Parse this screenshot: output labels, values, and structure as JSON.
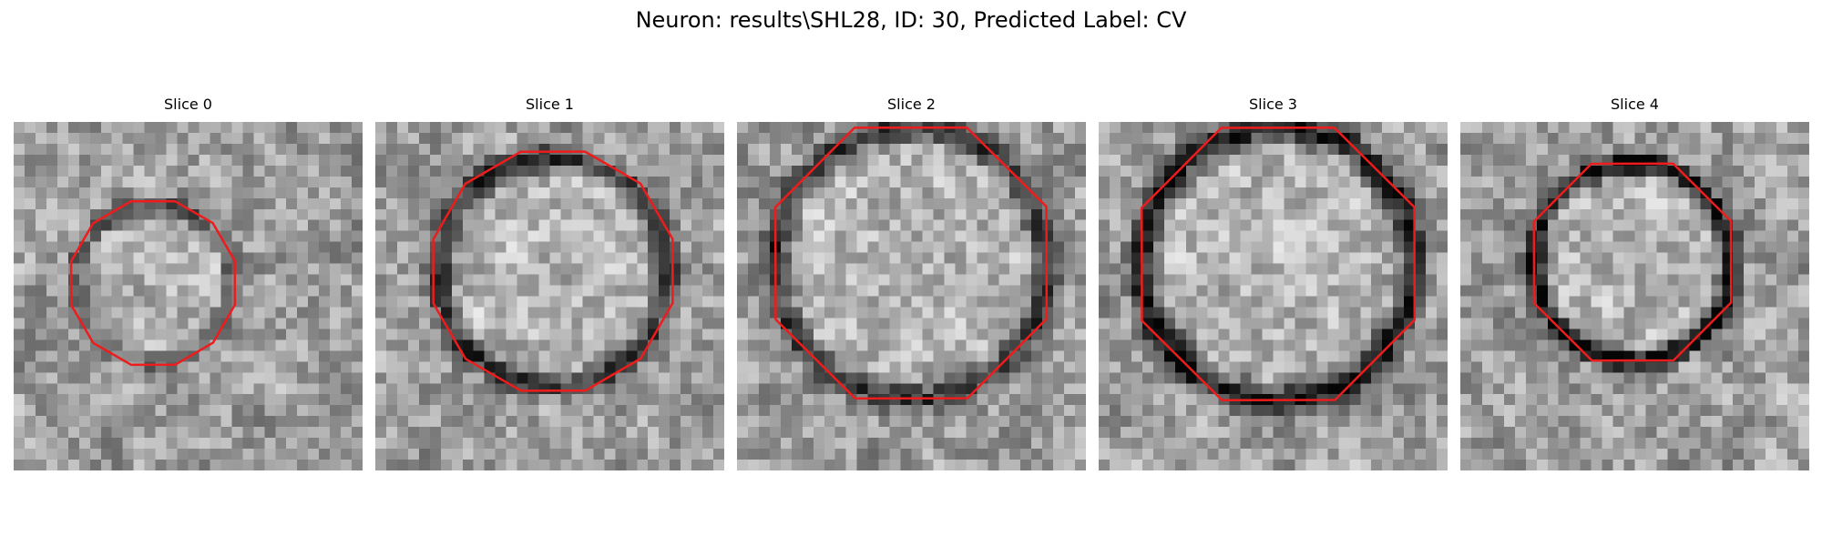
{
  "figure": {
    "title": "Neuron: results\\SHL28, ID: 30, Predicted Label: CV"
  },
  "panels": [
    {
      "title": "Slice 0"
    },
    {
      "title": "Slice 1"
    },
    {
      "title": "Slice 2"
    },
    {
      "title": "Slice 3"
    },
    {
      "title": "Slice 4"
    }
  ],
  "colors": {
    "contour": "#ee1c1c",
    "background": "#ffffff"
  }
}
